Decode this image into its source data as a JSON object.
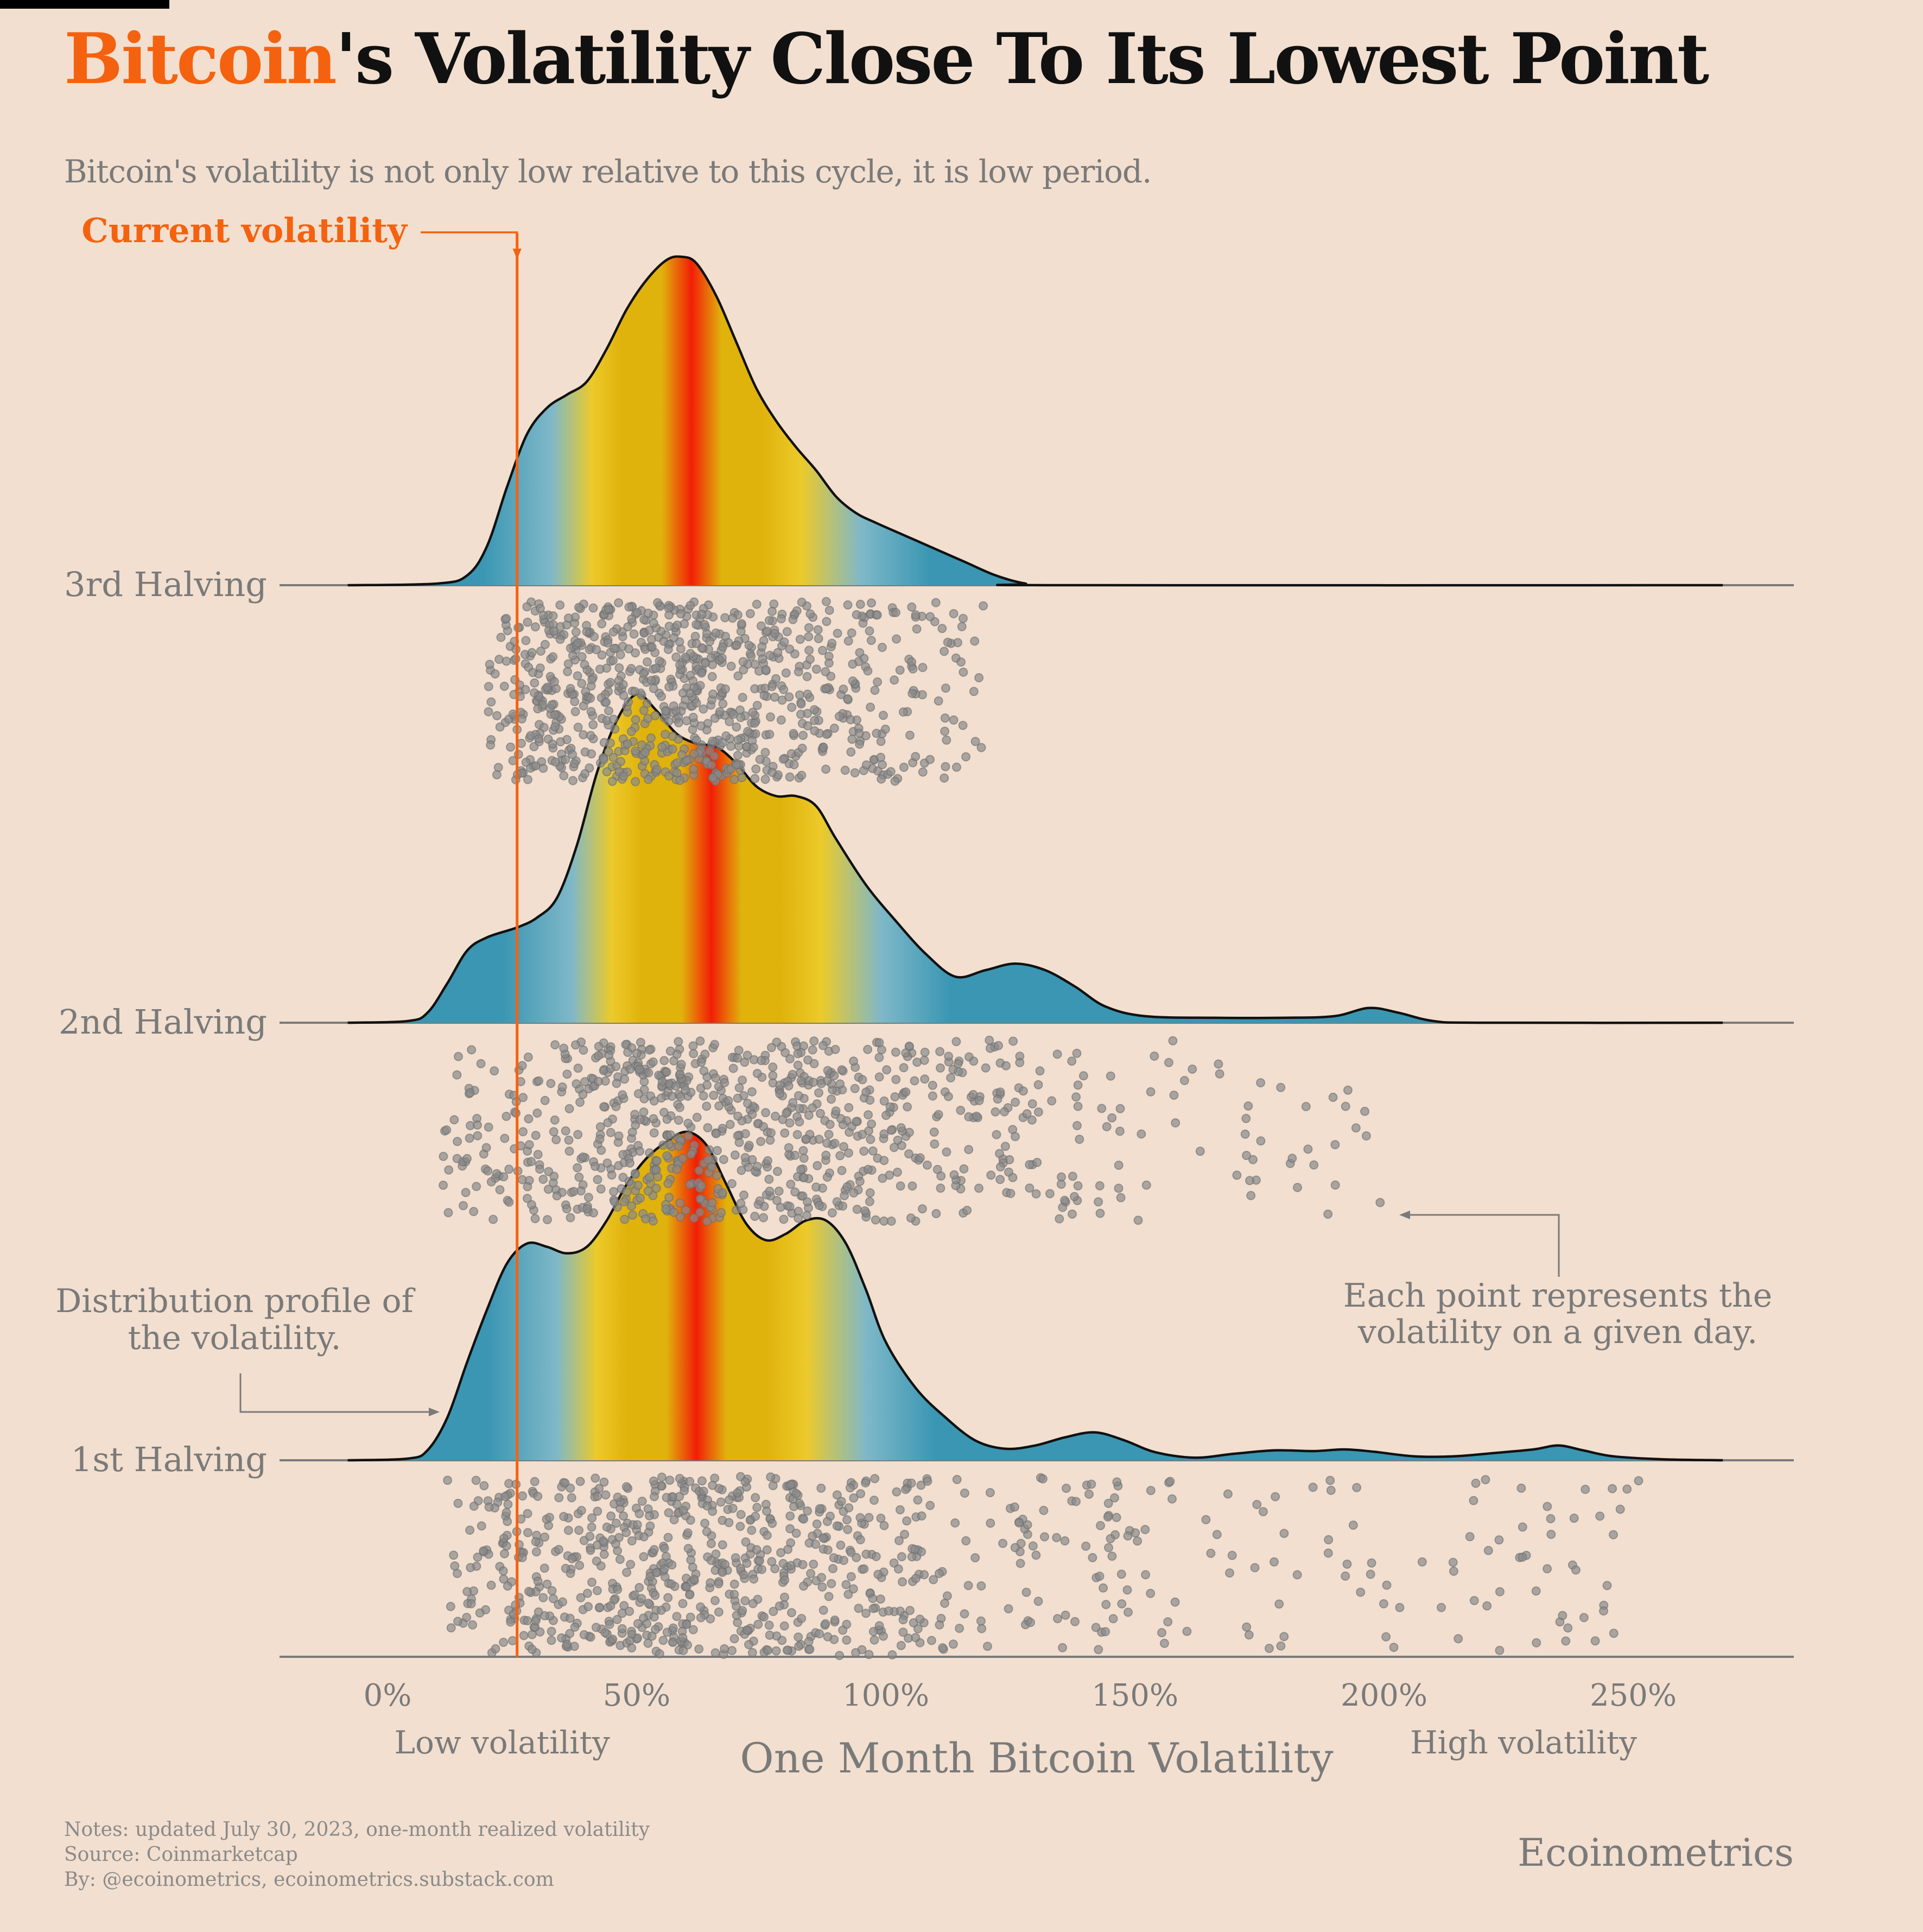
{
  "header": {
    "title_accent": "Bitcoin",
    "title_rest": "'s Volatility Close To Its Lowest Point",
    "subtitle": "Bitcoin's volatility is not only low relative to this cycle, it is low period."
  },
  "footer": {
    "notes": "Notes: updated July 30, 2023, one-month realized volatility",
    "source": "Source: Coinmarketcap",
    "by": "By: @ecoinometrics, ecoinometrics.substack.com",
    "brand": "Ecoinometrics"
  },
  "annotations": {
    "current_volatility": "Current volatility",
    "distribution_line1": "Distribution profile of",
    "distribution_line2": "the volatility.",
    "point_line1": "Each point represents the",
    "point_line2": "volatility on a given day.",
    "low": "Low volatility",
    "high": "High volatility"
  },
  "colors": {
    "accent": "#f5620f",
    "background": "#f2dfcf",
    "teal": "#3a96b3",
    "light_blue": "#7fb8c8",
    "yellow": "#ecca2a",
    "gold": "#e0b20c",
    "red": "#f21e06",
    "dots": "#8a8a8a"
  },
  "chart_data": {
    "type": "ridgeline",
    "xlabel": "One Month Bitcoin Volatility",
    "x_ticks": [
      "0%",
      "50%",
      "100%",
      "150%",
      "200%",
      "250%"
    ],
    "x_tick_values": [
      0,
      50,
      100,
      150,
      200,
      250
    ],
    "xlim": [
      -21,
      282
    ],
    "current_volatility": 26,
    "series": [
      {
        "name": "3rd Halving",
        "range": [
          20,
          120
        ],
        "peak": 61,
        "density_relative": [
          [
            -8,
            0
          ],
          [
            10,
            0.005
          ],
          [
            16,
            0.03
          ],
          [
            20,
            0.12
          ],
          [
            24,
            0.3
          ],
          [
            28,
            0.46
          ],
          [
            32,
            0.54
          ],
          [
            36,
            0.58
          ],
          [
            40,
            0.62
          ],
          [
            44,
            0.72
          ],
          [
            48,
            0.84
          ],
          [
            52,
            0.93
          ],
          [
            56,
            0.99
          ],
          [
            59,
            1.0
          ],
          [
            62,
            0.98
          ],
          [
            66,
            0.88
          ],
          [
            70,
            0.74
          ],
          [
            74,
            0.6
          ],
          [
            78,
            0.5
          ],
          [
            82,
            0.42
          ],
          [
            86,
            0.35
          ],
          [
            90,
            0.27
          ],
          [
            94,
            0.22
          ],
          [
            98,
            0.19
          ],
          [
            104,
            0.15
          ],
          [
            110,
            0.11
          ],
          [
            116,
            0.07
          ],
          [
            122,
            0.03
          ],
          [
            128,
            0.005
          ],
          [
            134,
            0
          ],
          [
            268,
            0
          ]
        ]
      },
      {
        "name": "2nd Halving",
        "range": [
          10,
          200
        ],
        "peak": 65,
        "density_relative": [
          [
            -8,
            0
          ],
          [
            4,
            0.005
          ],
          [
            8,
            0.03
          ],
          [
            12,
            0.12
          ],
          [
            16,
            0.22
          ],
          [
            20,
            0.26
          ],
          [
            26,
            0.29
          ],
          [
            30,
            0.32
          ],
          [
            34,
            0.38
          ],
          [
            38,
            0.54
          ],
          [
            42,
            0.76
          ],
          [
            46,
            0.92
          ],
          [
            50,
            1.0
          ],
          [
            54,
            0.95
          ],
          [
            58,
            0.88
          ],
          [
            62,
            0.85
          ],
          [
            66,
            0.84
          ],
          [
            70,
            0.79
          ],
          [
            74,
            0.72
          ],
          [
            78,
            0.69
          ],
          [
            82,
            0.69
          ],
          [
            86,
            0.66
          ],
          [
            90,
            0.56
          ],
          [
            96,
            0.42
          ],
          [
            102,
            0.31
          ],
          [
            108,
            0.21
          ],
          [
            114,
            0.14
          ],
          [
            120,
            0.16
          ],
          [
            126,
            0.18
          ],
          [
            132,
            0.16
          ],
          [
            138,
            0.11
          ],
          [
            144,
            0.05
          ],
          [
            152,
            0.02
          ],
          [
            166,
            0.015
          ],
          [
            180,
            0.015
          ],
          [
            190,
            0.02
          ],
          [
            197,
            0.045
          ],
          [
            203,
            0.03
          ],
          [
            210,
            0.005
          ],
          [
            220,
            0
          ],
          [
            268,
            0
          ]
        ]
      },
      {
        "name": "1st Halving",
        "range": [
          12,
          252
        ],
        "peak": 62,
        "density_relative": [
          [
            -8,
            0
          ],
          [
            4,
            0.005
          ],
          [
            8,
            0.03
          ],
          [
            12,
            0.13
          ],
          [
            16,
            0.3
          ],
          [
            20,
            0.46
          ],
          [
            24,
            0.6
          ],
          [
            28,
            0.66
          ],
          [
            32,
            0.65
          ],
          [
            36,
            0.63
          ],
          [
            40,
            0.65
          ],
          [
            44,
            0.73
          ],
          [
            48,
            0.84
          ],
          [
            52,
            0.92
          ],
          [
            56,
            0.97
          ],
          [
            60,
            1.0
          ],
          [
            64,
            0.96
          ],
          [
            68,
            0.84
          ],
          [
            72,
            0.72
          ],
          [
            76,
            0.67
          ],
          [
            80,
            0.69
          ],
          [
            84,
            0.73
          ],
          [
            88,
            0.73
          ],
          [
            92,
            0.66
          ],
          [
            96,
            0.52
          ],
          [
            100,
            0.36
          ],
          [
            106,
            0.22
          ],
          [
            112,
            0.13
          ],
          [
            118,
            0.06
          ],
          [
            124,
            0.035
          ],
          [
            130,
            0.045
          ],
          [
            136,
            0.07
          ],
          [
            142,
            0.085
          ],
          [
            148,
            0.06
          ],
          [
            154,
            0.025
          ],
          [
            162,
            0.008
          ],
          [
            170,
            0.02
          ],
          [
            178,
            0.03
          ],
          [
            186,
            0.028
          ],
          [
            192,
            0.033
          ],
          [
            198,
            0.026
          ],
          [
            206,
            0.012
          ],
          [
            214,
            0.012
          ],
          [
            222,
            0.022
          ],
          [
            230,
            0.033
          ],
          [
            235,
            0.045
          ],
          [
            240,
            0.03
          ],
          [
            246,
            0.012
          ],
          [
            256,
            0.003
          ],
          [
            268,
            0
          ]
        ]
      }
    ]
  }
}
